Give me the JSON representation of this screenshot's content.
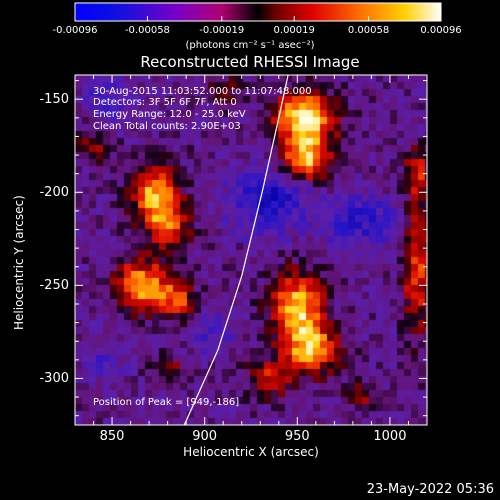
{
  "chart_data": {
    "type": "heatmap",
    "title": "Reconstructed RHESSI Image",
    "xlabel": "Heliocentric X (arcsec)",
    "ylabel": "Heliocentric Y (arcsec)",
    "xlim": [
      830,
      1020
    ],
    "ylim": [
      -325,
      -137
    ],
    "x_ticks": [
      "850",
      "900",
      "950",
      "1000"
    ],
    "x_tick_values": [
      850,
      900,
      950,
      1000
    ],
    "y_ticks": [
      "-150",
      "-200",
      "-250",
      "-300"
    ],
    "y_tick_values": [
      -150,
      -200,
      -250,
      -300
    ],
    "colorbar": {
      "ticks": [
        "-0.00096",
        "-0.00058",
        "-0.00019",
        "0.00019",
        "0.00058",
        "0.00096"
      ],
      "min": -0.00096,
      "max": 0.00096,
      "units": "(photons cm⁻² s⁻¹ asec⁻²)"
    },
    "annotations": {
      "time_range": "30-Aug-2015 11:03:52.000 to 11:07:48.000",
      "detectors": "Detectors: 3F 5F 6F 7F, Att 0",
      "energy": "Energy Range: 12.0 - 25.0 keV",
      "clean": "Clean     Total counts: 2.90E+03",
      "peak": "Position of Peak = [949,-186]"
    },
    "sources": [
      {
        "x": 954,
        "y": -160,
        "sx": 11,
        "sy": 10,
        "amp": 1.0
      },
      {
        "x": 955,
        "y": -182,
        "sx": 9,
        "sy": 8,
        "amp": 0.8
      },
      {
        "x": 873,
        "y": -200,
        "sx": 9,
        "sy": 11,
        "amp": 0.75
      },
      {
        "x": 880,
        "y": -218,
        "sx": 8,
        "sy": 9,
        "amp": 0.6
      },
      {
        "x": 866,
        "y": -250,
        "sx": 10,
        "sy": 9,
        "amp": 0.85
      },
      {
        "x": 885,
        "y": -258,
        "sx": 7,
        "sy": 7,
        "amp": 0.55
      },
      {
        "x": 950,
        "y": -262,
        "sx": 10,
        "sy": 13,
        "amp": 0.85
      },
      {
        "x": 958,
        "y": -285,
        "sx": 10,
        "sy": 9,
        "amp": 0.75
      },
      {
        "x": 935,
        "y": -300,
        "sx": 8,
        "sy": 7,
        "amp": 0.5
      },
      {
        "x": 1015,
        "y": -240,
        "sx": 6,
        "sy": 25,
        "amp": 0.55
      },
      {
        "x": 1015,
        "y": -190,
        "sx": 5,
        "sy": 10,
        "amp": 0.45
      },
      {
        "x": 840,
        "y": -175,
        "sx": 6,
        "sy": 6,
        "amp": 0.4
      },
      {
        "x": 985,
        "y": -310,
        "sx": 6,
        "sy": 5,
        "amp": 0.35
      },
      {
        "x": 880,
        "y": -295,
        "sx": 6,
        "sy": 5,
        "amp": 0.3
      },
      {
        "x": 910,
        "y": -145,
        "sx": 6,
        "sy": 5,
        "amp": 0.35
      }
    ],
    "negatives": [
      {
        "x": 935,
        "y": -205,
        "sx": 15,
        "sy": 12,
        "amp": 0.45
      },
      {
        "x": 985,
        "y": -215,
        "sx": 14,
        "sy": 10,
        "amp": 0.35
      },
      {
        "x": 850,
        "y": -150,
        "sx": 10,
        "sy": 8,
        "amp": 0.25
      },
      {
        "x": 905,
        "y": -275,
        "sx": 8,
        "sy": 8,
        "amp": 0.25
      },
      {
        "x": 845,
        "y": -290,
        "sx": 8,
        "sy": 8,
        "amp": 0.2
      }
    ],
    "limb_curve": [
      [
        889,
        -325
      ],
      [
        907,
        -285
      ],
      [
        920,
        -245
      ],
      [
        931,
        -200
      ],
      [
        940,
        -160
      ],
      [
        945,
        -137
      ]
    ]
  },
  "footer_date": "23-May-2022 05:36"
}
